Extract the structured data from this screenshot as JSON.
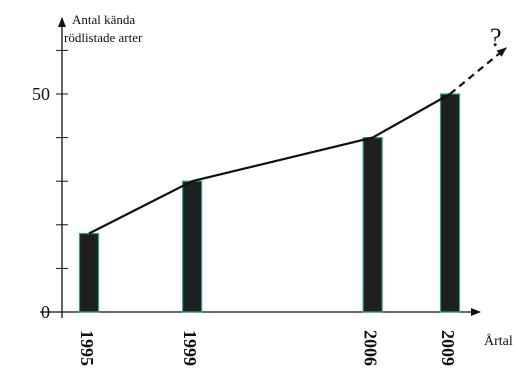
{
  "chart_data": {
    "type": "bar",
    "ylabel_lines": [
      "Antal kända",
      "rödlistade arter"
    ],
    "xlabel": "Årtal",
    "categories": [
      "1995",
      "1999",
      "2006",
      "2009"
    ],
    "x": [
      1995,
      1999,
      2006,
      2009
    ],
    "values": [
      18,
      30,
      40,
      50
    ],
    "ylim": [
      0,
      70
    ],
    "yticks": [
      0,
      10,
      20,
      30,
      40,
      50,
      60
    ],
    "ytick_labels": [
      {
        "value": 0,
        "label": "0"
      },
      {
        "value": 50,
        "label": "50"
      }
    ],
    "trend_line": true,
    "extrapolation": {
      "label": "?"
    },
    "grid": false,
    "legend": "none",
    "colors": {
      "bar_fill": "#1f1f1f",
      "bar_edge": "#2aa198",
      "line": "#111111"
    }
  }
}
